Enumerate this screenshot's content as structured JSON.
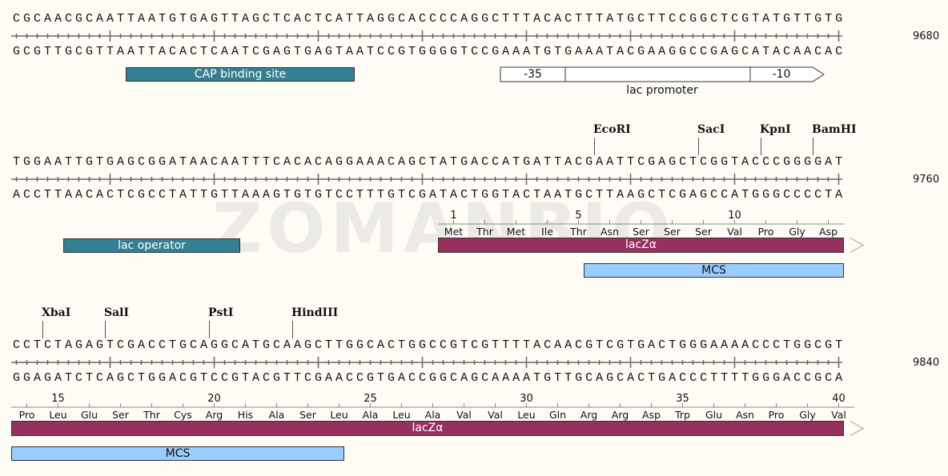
{
  "watermark": "ZOMANBIO",
  "colors": {
    "cap": "#337f93",
    "lacz": "#96315f",
    "mcs": "#99ccff",
    "promoter": "#ffffff",
    "background": "#fffcf5"
  },
  "rows": [
    {
      "end_number": "9680",
      "top": "CGCAACGCAATTAATGTGAGTTAGCTCACTCATTAGGCACCCCAGGCTTTACACTTTATGCTTCCGGCTCGTATGTTGTG",
      "bottom": "GCGTTGCGTTAATTACACTCAATCGAGTGAGTAATCCGTGGGGTCCGAAATGTGAAATACGAAGGCCGAGCATACAACAC",
      "enzymes": [],
      "translation": null,
      "features": [
        {
          "label": "CAP binding site",
          "start": 11,
          "end": 33,
          "color": "#337f93",
          "text_color": "#ffffff",
          "lane": 0
        }
      ],
      "promoter": {
        "label": "lac promoter",
        "start": 47,
        "end": 77,
        "box35": {
          "label": "-35",
          "start": 47,
          "end": 53
        },
        "box10": {
          "label": "-10",
          "start": 71,
          "end": 77
        }
      }
    },
    {
      "end_number": "9760",
      "top": "TGGAATTGTGAGCGGATAACAATTTCACACAGGAAACAGCTATGACCATGATTACGAATTCGAGCTCGGTACCCGGGGAT",
      "bottom": "ACCTTAACACTCGCCTATTGTTAAAGTGTGTCCTTTGTCGATACTGGTACTAATGCTTAAGCTCGAGCCATGGGCCCCTA",
      "enzymes": [
        {
          "name": "EcoRI",
          "pos": 56
        },
        {
          "name": "SacI",
          "pos": 66
        },
        {
          "name": "KpnI",
          "pos": 72
        },
        {
          "name": "BamHI",
          "pos": 77
        }
      ],
      "translation": {
        "start": 41,
        "first_aa_number": 1,
        "amino_acids": [
          "Met",
          "Thr",
          "Met",
          "Ile",
          "Thr",
          "Asn",
          "Ser",
          "Ser",
          "Ser",
          "Val",
          "Pro",
          "Gly",
          "Asp"
        ],
        "numbers": [
          "1",
          "5",
          "10"
        ]
      },
      "features": [
        {
          "label": "lac operator",
          "start": 5,
          "end": 22,
          "color": "#337f93",
          "text_color": "#ffffff",
          "lane": 0
        },
        {
          "label": "lacZα",
          "start": 41,
          "end": 80,
          "color": "#96315f",
          "text_color": "#ffffff",
          "lane": 0,
          "arrow": true
        },
        {
          "label": "MCS",
          "start": 55,
          "end": 80,
          "color": "#99ccff",
          "text_color": "#111111",
          "lane": 1
        }
      ]
    },
    {
      "end_number": "9840",
      "top": "CCTCTAGAGTCGACCTGCAGGCATGCAAGCTTGGCACTGGCCGTCGTTTTACAACGTCGTGACTGGGAAAACCCTGGCGT",
      "bottom": "GGAGATCTCAGCTGGACGTCCGTACGTTCGAACCGTGACCGGCAGCAAAATGTTGCAGCACTGACCCTTTTGGGACCGCA",
      "enzymes": [
        {
          "name": "XbaI",
          "pos": 3
        },
        {
          "name": "SalI",
          "pos": 9
        },
        {
          "name": "PstI",
          "pos": 19
        },
        {
          "name": "HindIII",
          "pos": 27
        }
      ],
      "translation": {
        "start": 0,
        "first_aa_number": 14,
        "amino_acids": [
          "Pro",
          "Leu",
          "Glu",
          "Ser",
          "Thr",
          "Cys",
          "Arg",
          "His",
          "Ala",
          "Ser",
          "Leu",
          "Ala",
          "Leu",
          "Ala",
          "Val",
          "Val",
          "Leu",
          "Gln",
          "Arg",
          "Arg",
          "Asp",
          "Trp",
          "Glu",
          "Asn",
          "Pro",
          "Gly",
          "Val"
        ],
        "numbers": [
          "15",
          "20",
          "25",
          "30",
          "35",
          "40"
        ]
      },
      "features": [
        {
          "label": "lacZα",
          "start": 0,
          "end": 80,
          "color": "#96315f",
          "text_color": "#ffffff",
          "lane": 0,
          "arrow": true
        },
        {
          "label": "MCS",
          "start": 0,
          "end": 32,
          "color": "#99ccff",
          "text_color": "#111111",
          "lane": 1
        }
      ]
    }
  ]
}
